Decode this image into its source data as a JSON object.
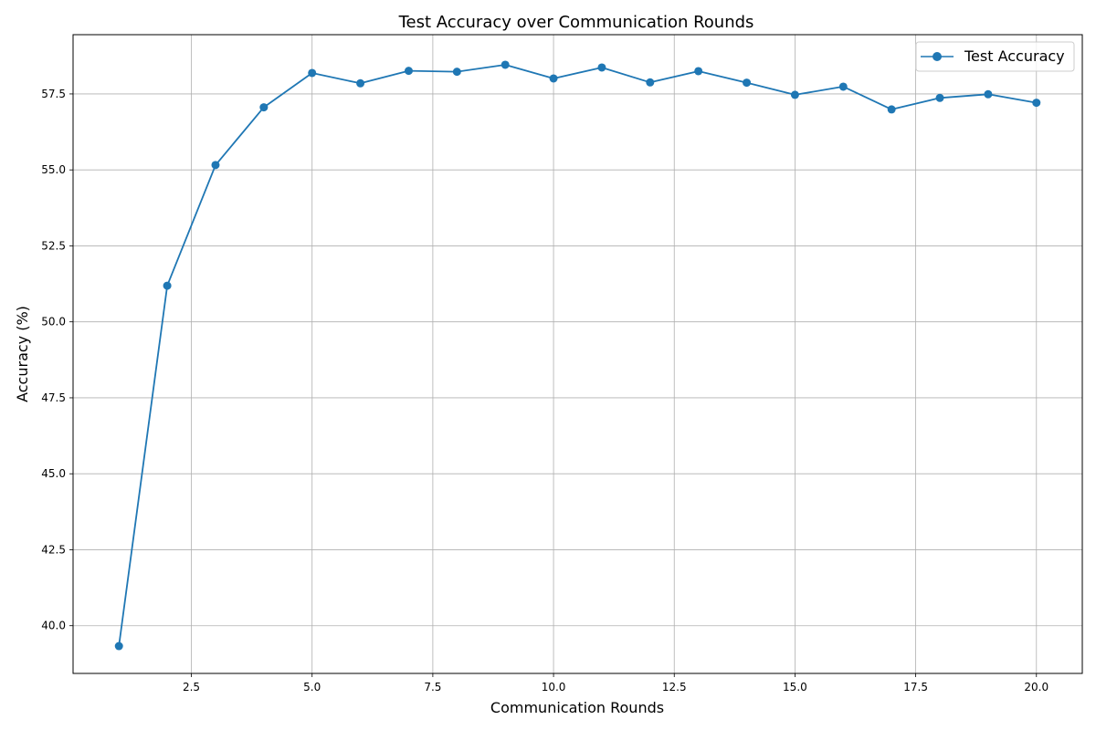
{
  "chart_data": {
    "type": "line",
    "title": "Test Accuracy over Communication Rounds",
    "xlabel": "Communication Rounds",
    "ylabel": "Accuracy (%)",
    "xlim": [
      0.05,
      20.95
    ],
    "ylim": [
      38.43,
      59.45
    ],
    "grid": true,
    "legend_position": "top-right",
    "x_ticks": [
      "2.5",
      "5.0",
      "7.5",
      "10.0",
      "12.5",
      "15.0",
      "17.5",
      "20.0"
    ],
    "y_ticks": [
      "40.0",
      "42.5",
      "45.0",
      "47.5",
      "50.0",
      "52.5",
      "55.0",
      "57.5"
    ],
    "series": [
      {
        "name": "Test Accuracy",
        "color": "#1f77b4",
        "marker": "circle",
        "x": [
          1,
          2,
          3,
          4,
          5,
          6,
          7,
          8,
          9,
          10,
          11,
          12,
          13,
          14,
          15,
          16,
          17,
          18,
          19,
          20
        ],
        "y": [
          39.33,
          51.19,
          55.16,
          57.06,
          58.19,
          57.85,
          58.26,
          58.23,
          58.46,
          58.01,
          58.37,
          57.88,
          58.25,
          57.87,
          57.47,
          57.74,
          56.99,
          57.37,
          57.49,
          57.21
        ]
      }
    ]
  }
}
